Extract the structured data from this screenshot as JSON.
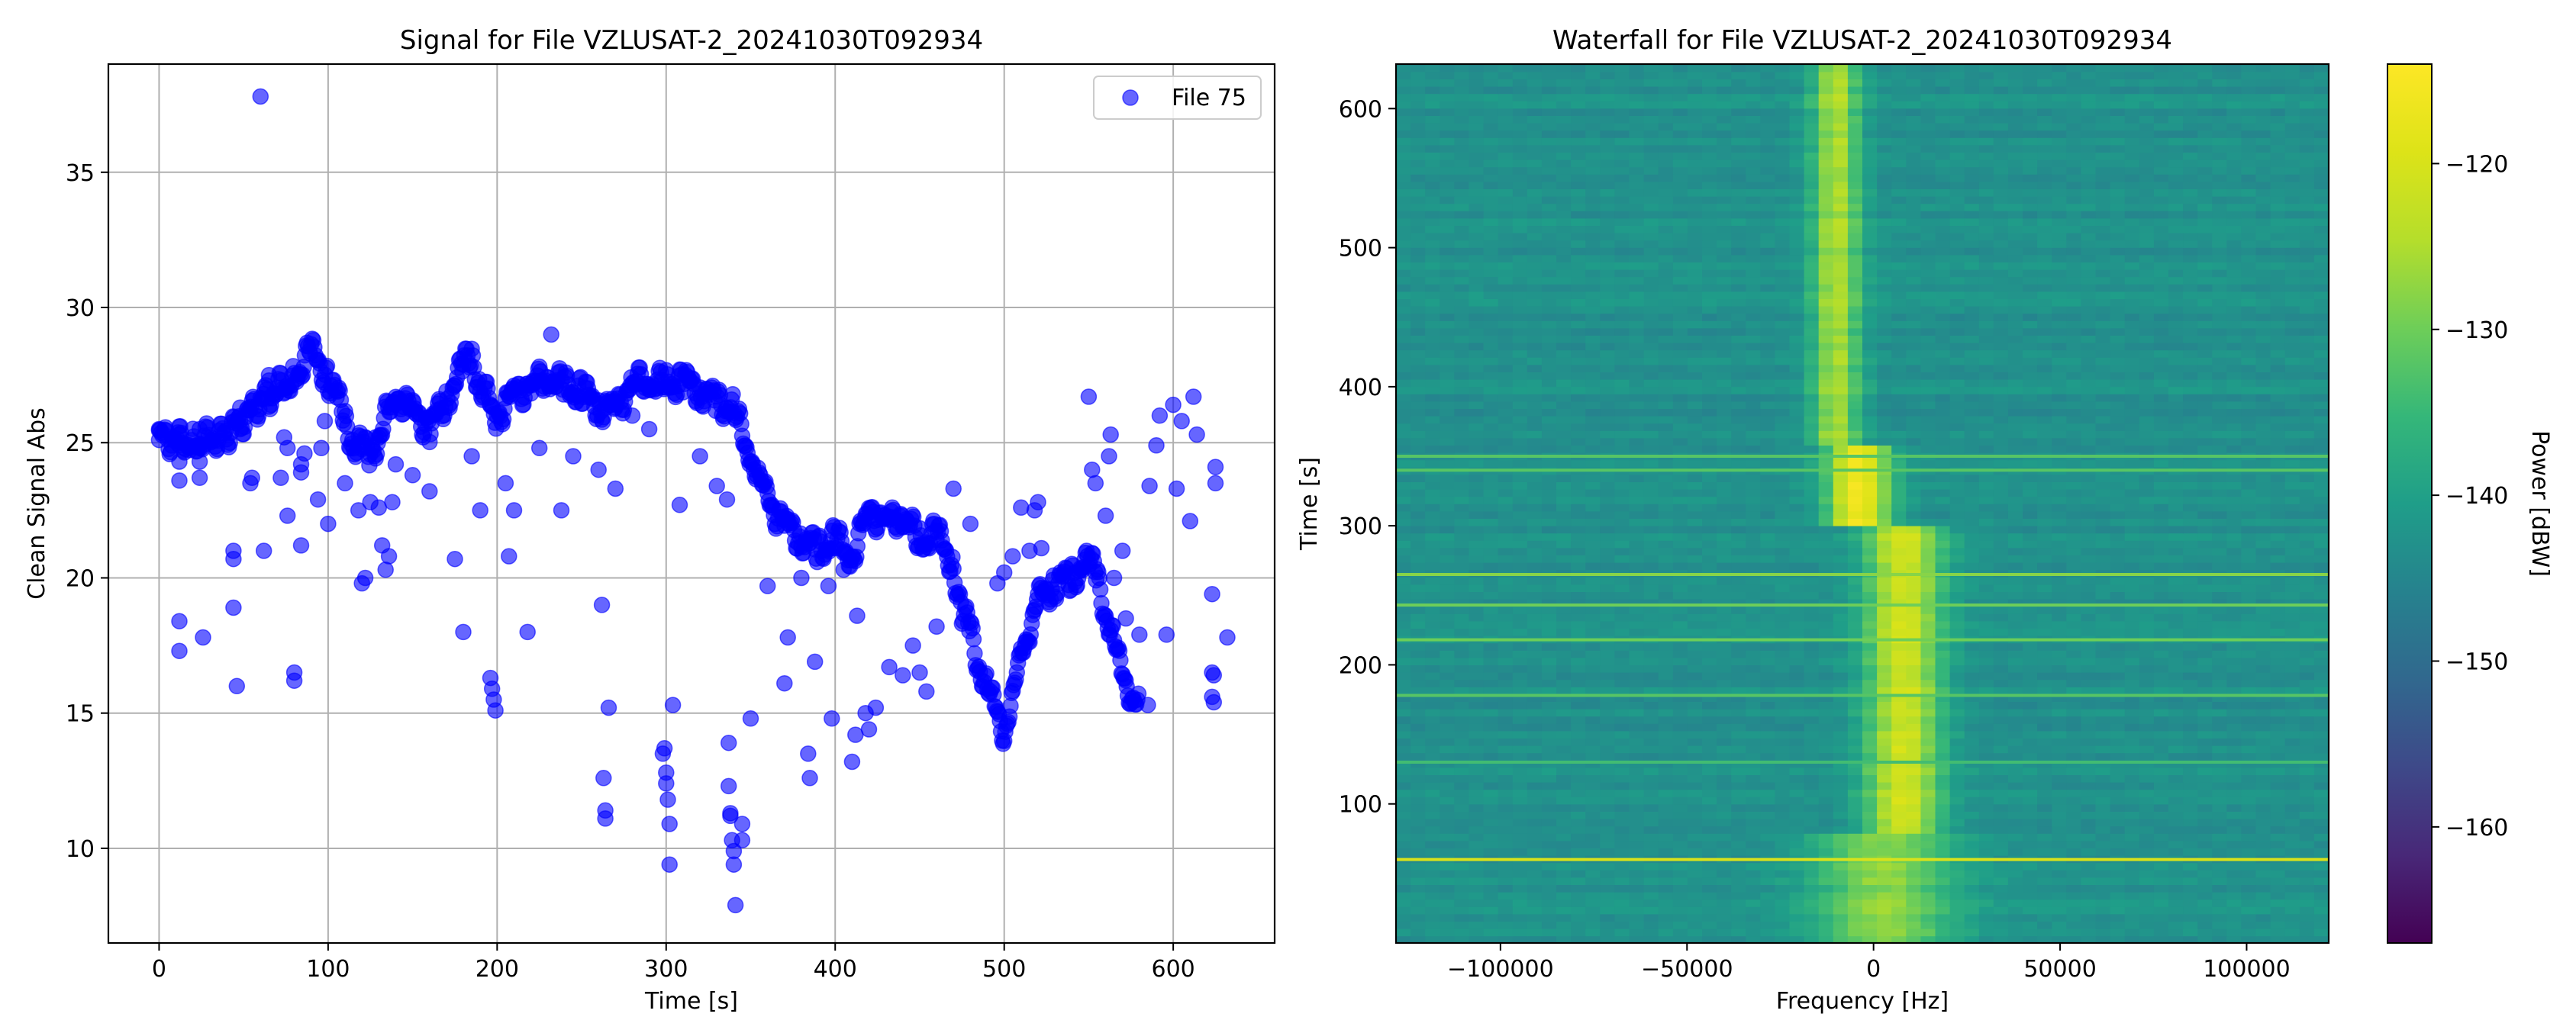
{
  "chart_data": [
    {
      "type": "scatter",
      "title": "Signal for File VZLUSAT-2_20241030T092934",
      "xlabel": "Time [s]",
      "ylabel": "Clean Signal Abs",
      "xlim": [
        -30,
        660
      ],
      "ylim": [
        6.5,
        39
      ],
      "xticks": [
        0,
        100,
        200,
        300,
        400,
        500,
        600
      ],
      "yticks": [
        10,
        15,
        20,
        25,
        30,
        35
      ],
      "grid": true,
      "legend": {
        "placement": "top-right",
        "entries": [
          "File 75"
        ]
      },
      "point_color": "#0000ff",
      "point_alpha": 0.6,
      "series": [
        {
          "name": "File 75",
          "main_trend": [
            [
              0,
              25.2
            ],
            [
              20,
              25.0
            ],
            [
              40,
              25.3
            ],
            [
              60,
              26.5
            ],
            [
              80,
              27.4
            ],
            [
              90,
              28.4
            ],
            [
              100,
              27.4
            ],
            [
              105,
              26.7
            ],
            [
              110,
              25.8
            ],
            [
              115,
              25.0
            ],
            [
              120,
              24.8
            ],
            [
              125,
              24.5
            ],
            [
              130,
              25.3
            ],
            [
              140,
              26.8
            ],
            [
              150,
              26.1
            ],
            [
              160,
              25.6
            ],
            [
              170,
              26.6
            ],
            [
              180,
              27.8
            ],
            [
              185,
              28.2
            ],
            [
              190,
              27.1
            ],
            [
              200,
              26.0
            ],
            [
              210,
              26.8
            ],
            [
              220,
              27.1
            ],
            [
              230,
              27.5
            ],
            [
              240,
              27.0
            ],
            [
              250,
              26.9
            ],
            [
              260,
              26.4
            ],
            [
              270,
              26.2
            ],
            [
              280,
              27.2
            ],
            [
              290,
              27.3
            ],
            [
              300,
              27.1
            ],
            [
              310,
              27.3
            ],
            [
              320,
              27.0
            ],
            [
              330,
              26.5
            ],
            [
              340,
              26.2
            ],
            [
              350,
              24.5
            ],
            [
              355,
              23.8
            ],
            [
              360,
              22.8
            ],
            [
              370,
              22.0
            ],
            [
              380,
              21.5
            ],
            [
              390,
              21.0
            ],
            [
              400,
              21.4
            ],
            [
              410,
              20.8
            ],
            [
              420,
              22.5
            ],
            [
              430,
              22.0
            ],
            [
              440,
              22.4
            ],
            [
              450,
              21.3
            ],
            [
              460,
              21.6
            ],
            [
              470,
              20.5
            ],
            [
              475,
              18.5
            ],
            [
              480,
              18.2
            ],
            [
              485,
              16.8
            ],
            [
              490,
              15.8
            ],
            [
              495,
              15.2
            ],
            [
              500,
              14.3
            ],
            [
              505,
              15.5
            ],
            [
              510,
              17.2
            ],
            [
              515,
              18.2
            ],
            [
              520,
              19.2
            ],
            [
              530,
              19.8
            ],
            [
              540,
              20.1
            ],
            [
              550,
              20.5
            ],
            [
              555,
              20.2
            ],
            [
              560,
              18.7
            ],
            [
              565,
              17.5
            ],
            [
              570,
              16.5
            ],
            [
              575,
              15.7
            ],
            [
              580,
              15.2
            ]
          ],
          "outliers": [
            [
              0,
              25.5
            ],
            [
              0,
              25.1
            ],
            [
              12,
              24.9
            ],
            [
              12,
              24.3
            ],
            [
              12,
              23.6
            ],
            [
              12,
              25.3
            ],
            [
              12,
              18.4
            ],
            [
              12,
              17.3
            ],
            [
              24,
              25.5
            ],
            [
              24,
              24.8
            ],
            [
              24,
              24.3
            ],
            [
              24,
              23.7
            ],
            [
              26,
              17.8
            ],
            [
              44,
              20.7
            ],
            [
              44,
              21.0
            ],
            [
              44,
              18.9
            ],
            [
              46,
              16.0
            ],
            [
              48,
              26.3
            ],
            [
              48,
              25.5
            ],
            [
              54,
              23.5
            ],
            [
              55,
              23.7
            ],
            [
              60,
              37.8
            ],
            [
              62,
              21.0
            ],
            [
              65,
              27.5
            ],
            [
              65,
              27.3
            ],
            [
              72,
              23.7
            ],
            [
              74,
              25.2
            ],
            [
              76,
              24.8
            ],
            [
              76,
              22.3
            ],
            [
              80,
              16.5
            ],
            [
              80,
              16.2
            ],
            [
              84,
              21.2
            ],
            [
              84,
              23.9
            ],
            [
              84,
              24.2
            ],
            [
              86,
              24.6
            ],
            [
              94,
              22.9
            ],
            [
              96,
              24.8
            ],
            [
              98,
              25.8
            ],
            [
              100,
              22.0
            ],
            [
              110,
              23.5
            ],
            [
              118,
              22.5
            ],
            [
              120,
              19.8
            ],
            [
              122,
              20.0
            ],
            [
              125,
              22.8
            ],
            [
              128,
              25.2
            ],
            [
              130,
              22.6
            ],
            [
              132,
              21.2
            ],
            [
              134,
              20.3
            ],
            [
              136,
              20.8
            ],
            [
              138,
              22.8
            ],
            [
              140,
              24.2
            ],
            [
              150,
              23.8
            ],
            [
              160,
              23.2
            ],
            [
              175,
              20.7
            ],
            [
              180,
              18.0
            ],
            [
              185,
              24.5
            ],
            [
              190,
              22.5
            ],
            [
              196,
              16.3
            ],
            [
              197,
              15.9
            ],
            [
              198,
              15.5
            ],
            [
              199,
              15.1
            ],
            [
              205,
              23.5
            ],
            [
              207,
              20.8
            ],
            [
              210,
              22.5
            ],
            [
              218,
              18.0
            ],
            [
              225,
              24.8
            ],
            [
              232,
              29.0
            ],
            [
              238,
              22.5
            ],
            [
              245,
              24.5
            ],
            [
              260,
              24.0
            ],
            [
              262,
              19.0
            ],
            [
              263,
              12.6
            ],
            [
              264,
              11.4
            ],
            [
              264,
              11.1
            ],
            [
              266,
              15.2
            ],
            [
              270,
              23.3
            ],
            [
              280,
              26.0
            ],
            [
              290,
              25.5
            ],
            [
              298,
              13.5
            ],
            [
              299,
              13.7
            ],
            [
              300,
              12.8
            ],
            [
              300,
              12.4
            ],
            [
              301,
              11.8
            ],
            [
              302,
              10.9
            ],
            [
              302,
              9.4
            ],
            [
              304,
              15.3
            ],
            [
              308,
              22.7
            ],
            [
              320,
              24.5
            ],
            [
              330,
              23.4
            ],
            [
              336,
              22.9
            ],
            [
              337,
              13.9
            ],
            [
              337,
              12.3
            ],
            [
              338,
              11.3
            ],
            [
              338,
              11.2
            ],
            [
              339,
              10.3
            ],
            [
              340,
              9.4
            ],
            [
              340,
              9.9
            ],
            [
              341,
              7.9
            ],
            [
              345,
              10.9
            ],
            [
              345,
              10.3
            ],
            [
              350,
              14.8
            ],
            [
              360,
              19.7
            ],
            [
              370,
              16.1
            ],
            [
              372,
              17.8
            ],
            [
              380,
              20.0
            ],
            [
              384,
              13.5
            ],
            [
              385,
              12.6
            ],
            [
              388,
              16.9
            ],
            [
              396,
              19.7
            ],
            [
              398,
              14.8
            ],
            [
              405,
              20.3
            ],
            [
              410,
              13.2
            ],
            [
              412,
              14.2
            ],
            [
              413,
              18.6
            ],
            [
              418,
              15.0
            ],
            [
              420,
              14.4
            ],
            [
              424,
              15.2
            ],
            [
              432,
              16.7
            ],
            [
              440,
              16.4
            ],
            [
              446,
              17.5
            ],
            [
              450,
              16.5
            ],
            [
              454,
              15.8
            ],
            [
              460,
              18.2
            ],
            [
              470,
              23.3
            ],
            [
              480,
              22.0
            ],
            [
              496,
              19.8
            ],
            [
              500,
              20.2
            ],
            [
              505,
              20.8
            ],
            [
              510,
              22.6
            ],
            [
              515,
              21.0
            ],
            [
              518,
              22.5
            ],
            [
              520,
              22.8
            ],
            [
              522,
              21.1
            ],
            [
              550,
              26.7
            ],
            [
              552,
              24.0
            ],
            [
              554,
              23.5
            ],
            [
              560,
              22.3
            ],
            [
              562,
              24.5
            ],
            [
              563,
              25.3
            ],
            [
              565,
              20.0
            ],
            [
              570,
              21.0
            ],
            [
              572,
              18.5
            ],
            [
              580,
              17.9
            ],
            [
              585,
              15.3
            ],
            [
              586,
              23.4
            ],
            [
              590,
              24.9
            ],
            [
              592,
              26.0
            ],
            [
              596,
              17.9
            ],
            [
              600,
              26.4
            ],
            [
              602,
              23.3
            ],
            [
              605,
              25.8
            ],
            [
              610,
              22.1
            ],
            [
              612,
              26.7
            ],
            [
              614,
              25.3
            ],
            [
              623,
              19.4
            ],
            [
              623,
              16.5
            ],
            [
              623,
              15.6
            ],
            [
              624,
              16.4
            ],
            [
              624,
              15.4
            ],
            [
              625,
              23.5
            ],
            [
              625,
              24.1
            ],
            [
              632,
              17.8
            ]
          ]
        }
      ]
    },
    {
      "type": "heatmap",
      "title": "Waterfall for File VZLUSAT-2_20241030T092934",
      "xlabel": "Frequency [Hz]",
      "ylabel": "Time [s]",
      "xlim": [
        -128000,
        122000
      ],
      "ylim": [
        0,
        632
      ],
      "xticks": [
        -100000,
        -50000,
        0,
        50000,
        100000
      ],
      "xtick_labels": [
        "−100000",
        "−50000",
        "0",
        "50000",
        "100000"
      ],
      "yticks": [
        100,
        200,
        300,
        400,
        500,
        600
      ],
      "colormap": "viridis",
      "colorbar": {
        "label": "Power [dBW]",
        "range": [
          -167,
          -114
        ],
        "ticks": [
          -160,
          -150,
          -140,
          -130,
          -120
        ],
        "tick_labels": [
          "−160",
          "−150",
          "−140",
          "−130",
          "−120"
        ]
      },
      "background_power_dbw": -143,
      "signal_track": [
        {
          "time_range": [
            0,
            80
          ],
          "center_hz": 3000,
          "width_hz": 40000,
          "peak_dbw": -128
        },
        {
          "time_range": [
            80,
            300
          ],
          "center_hz": 8000,
          "width_hz": 22000,
          "peak_dbw": -121
        },
        {
          "time_range": [
            300,
            360
          ],
          "center_hz": -4000,
          "width_hz": 18000,
          "peak_dbw": -116
        },
        {
          "time_range": [
            360,
            632
          ],
          "center_hz": -10000,
          "width_hz": 14000,
          "peak_dbw": -125
        }
      ],
      "horizontal_lines": [
        {
          "time_s": 60,
          "power_dbw": -120
        },
        {
          "time_s": 130,
          "power_dbw": -134
        },
        {
          "time_s": 178,
          "power_dbw": -132
        },
        {
          "time_s": 218,
          "power_dbw": -130
        },
        {
          "time_s": 243,
          "power_dbw": -130
        },
        {
          "time_s": 265,
          "power_dbw": -128
        },
        {
          "time_s": 340,
          "power_dbw": -132
        },
        {
          "time_s": 350,
          "power_dbw": -132
        }
      ]
    }
  ]
}
